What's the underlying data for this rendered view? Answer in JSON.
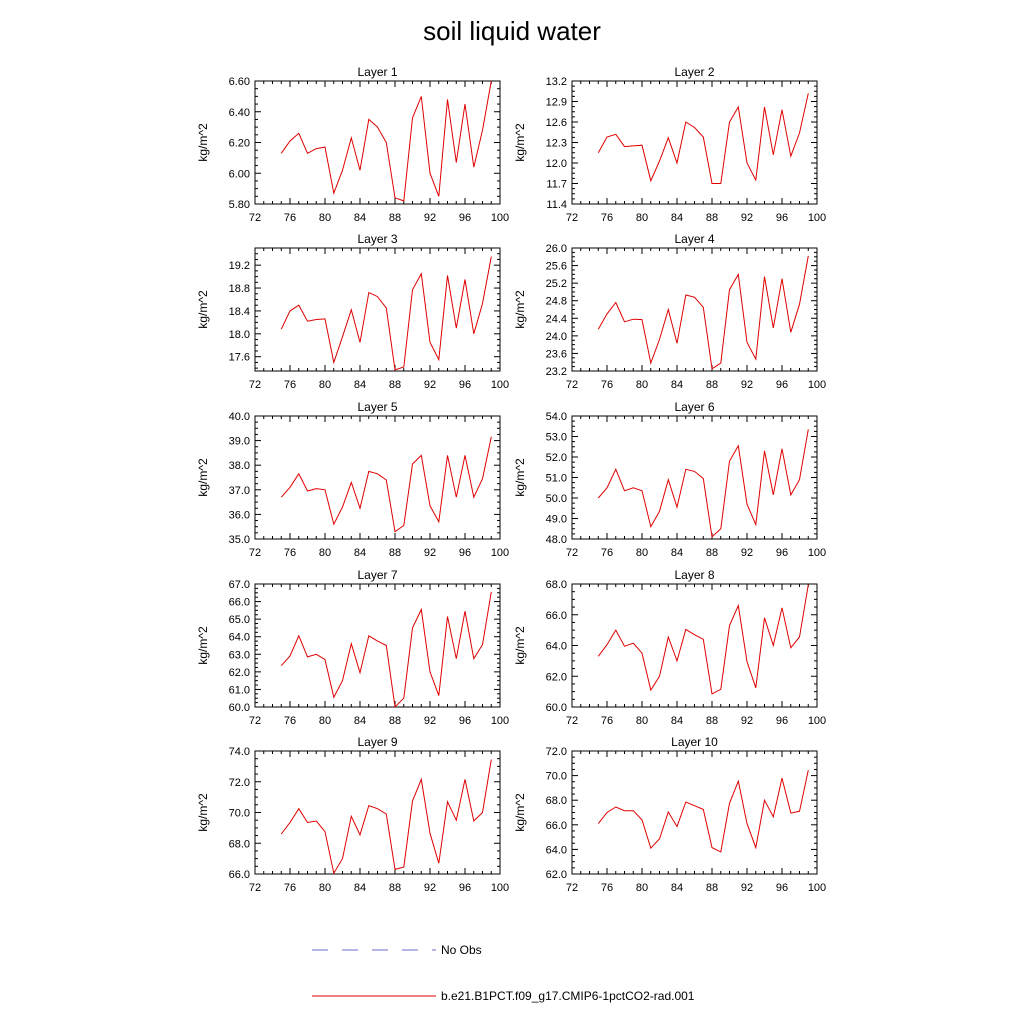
{
  "title": "soil liquid water",
  "legend": {
    "items": [
      {
        "label": "No Obs",
        "color": "#6b6bd6",
        "style": "dashed"
      },
      {
        "label": "b.e21.B1PCT.f09_g17.CMIP6-1pctCO2-rad.001",
        "color": "#e00000",
        "style": "solid"
      }
    ]
  },
  "chart_data": [
    {
      "type": "line",
      "title": "Layer 1",
      "ylabel": "kg/m^2",
      "xlim": [
        72,
        100
      ],
      "ylim": [
        5.8,
        6.6
      ],
      "xticks": [
        "72",
        "76",
        "80",
        "84",
        "88",
        "92",
        "96",
        "100"
      ],
      "yticks": [
        "5.80",
        "6.00",
        "6.20",
        "6.40",
        "6.60"
      ],
      "ytick_values": [
        5.8,
        6.0,
        6.2,
        6.4,
        6.6
      ],
      "series": [
        {
          "color": "#e00000",
          "x": [
            75,
            76,
            77,
            78,
            79,
            80,
            81,
            82,
            83,
            84,
            85,
            86,
            87,
            88,
            89,
            90,
            91,
            92,
            93,
            94,
            95,
            96,
            97,
            98,
            99
          ],
          "y": [
            6.13,
            6.21,
            6.26,
            6.13,
            6.16,
            6.17,
            5.87,
            6.02,
            6.23,
            6.02,
            6.35,
            6.3,
            6.2,
            5.84,
            5.82,
            6.36,
            6.5,
            6.0,
            5.85,
            6.48,
            6.07,
            6.45,
            6.04,
            6.28,
            6.6
          ]
        }
      ]
    },
    {
      "type": "line",
      "title": "Layer 2",
      "ylabel": "kg/m^2",
      "xlim": [
        72,
        100
      ],
      "ylim": [
        11.4,
        13.2
      ],
      "xticks": [
        "72",
        "76",
        "80",
        "84",
        "88",
        "92",
        "96",
        "100"
      ],
      "yticks": [
        "11.4",
        "11.7",
        "12.0",
        "12.3",
        "12.6",
        "12.9",
        "13.2"
      ],
      "ytick_values": [
        11.4,
        11.7,
        12.0,
        12.3,
        12.6,
        12.9,
        13.2
      ],
      "series": [
        {
          "color": "#e00000",
          "x": [
            75,
            76,
            77,
            78,
            79,
            80,
            81,
            82,
            83,
            84,
            85,
            86,
            87,
            88,
            89,
            90,
            91,
            92,
            93,
            94,
            95,
            96,
            97,
            98,
            99
          ],
          "y": [
            12.15,
            12.38,
            12.42,
            12.24,
            12.25,
            12.26,
            11.74,
            12.03,
            12.37,
            12.0,
            12.6,
            12.52,
            12.38,
            11.7,
            11.7,
            12.6,
            12.82,
            12.0,
            11.75,
            12.82,
            12.12,
            12.78,
            12.1,
            12.44,
            13.02
          ]
        }
      ]
    },
    {
      "type": "line",
      "title": "Layer 3",
      "ylabel": "kg/m^2",
      "xlim": [
        72,
        100
      ],
      "ylim": [
        17.35,
        19.5
      ],
      "xticks": [
        "72",
        "76",
        "80",
        "84",
        "88",
        "92",
        "96",
        "100"
      ],
      "yticks": [
        "17.6",
        "18.0",
        "18.4",
        "18.8",
        "19.2"
      ],
      "ytick_values": [
        17.6,
        18.0,
        18.4,
        18.8,
        19.2
      ],
      "series": [
        {
          "color": "#e00000",
          "x": [
            75,
            76,
            77,
            78,
            79,
            80,
            81,
            82,
            83,
            84,
            85,
            86,
            87,
            88,
            89,
            90,
            91,
            92,
            93,
            94,
            95,
            96,
            97,
            98,
            99
          ],
          "y": [
            18.08,
            18.4,
            18.5,
            18.22,
            18.25,
            18.26,
            17.5,
            17.95,
            18.42,
            17.85,
            18.72,
            18.65,
            18.45,
            17.37,
            17.42,
            18.77,
            19.05,
            17.85,
            17.55,
            19.02,
            18.1,
            18.95,
            18.0,
            18.53,
            19.35
          ]
        }
      ]
    },
    {
      "type": "line",
      "title": "Layer 4",
      "ylabel": "kg/m^2",
      "xlim": [
        72,
        100
      ],
      "ylim": [
        23.2,
        26.0
      ],
      "xticks": [
        "72",
        "76",
        "80",
        "84",
        "88",
        "92",
        "96",
        "100"
      ],
      "yticks": [
        "23.2",
        "23.6",
        "24.0",
        "24.4",
        "24.8",
        "25.2",
        "25.6",
        "26.0"
      ],
      "ytick_values": [
        23.2,
        23.6,
        24.0,
        24.4,
        24.8,
        25.2,
        25.6,
        26.0
      ],
      "series": [
        {
          "color": "#e00000",
          "x": [
            75,
            76,
            77,
            78,
            79,
            80,
            81,
            82,
            83,
            84,
            85,
            86,
            87,
            88,
            89,
            90,
            91,
            92,
            93,
            94,
            95,
            96,
            97,
            98,
            99
          ],
          "y": [
            24.15,
            24.5,
            24.76,
            24.32,
            24.38,
            24.37,
            23.38,
            23.92,
            24.6,
            23.83,
            24.93,
            24.88,
            24.65,
            23.25,
            23.38,
            25.05,
            25.4,
            23.85,
            23.47,
            25.35,
            24.18,
            25.3,
            24.08,
            24.72,
            25.82
          ]
        }
      ]
    },
    {
      "type": "line",
      "title": "Layer 5",
      "ylabel": "kg/m^2",
      "xlim": [
        72,
        100
      ],
      "ylim": [
        35.0,
        40.0
      ],
      "xticks": [
        "72",
        "76",
        "80",
        "84",
        "88",
        "92",
        "96",
        "100"
      ],
      "yticks": [
        "35.0",
        "36.0",
        "37.0",
        "38.0",
        "39.0",
        "40.0"
      ],
      "ytick_values": [
        35,
        36,
        37,
        38,
        39,
        40
      ],
      "series": [
        {
          "color": "#e00000",
          "x": [
            75,
            76,
            77,
            78,
            79,
            80,
            81,
            82,
            83,
            84,
            85,
            86,
            87,
            88,
            89,
            90,
            91,
            92,
            93,
            94,
            95,
            96,
            97,
            98,
            99
          ],
          "y": [
            36.7,
            37.1,
            37.65,
            36.95,
            37.05,
            37.0,
            35.6,
            36.3,
            37.3,
            36.25,
            37.75,
            37.65,
            37.4,
            35.3,
            35.55,
            38.05,
            38.4,
            36.35,
            35.7,
            38.4,
            36.7,
            38.4,
            36.7,
            37.45,
            39.15
          ]
        }
      ]
    },
    {
      "type": "line",
      "title": "Layer 6",
      "ylabel": "kg/m^2",
      "xlim": [
        72,
        100
      ],
      "ylim": [
        48.0,
        54.0
      ],
      "xticks": [
        "72",
        "76",
        "80",
        "84",
        "88",
        "92",
        "96",
        "100"
      ],
      "yticks": [
        "48.0",
        "49.0",
        "50.0",
        "51.0",
        "52.0",
        "53.0",
        "54.0"
      ],
      "ytick_values": [
        48,
        49,
        50,
        51,
        52,
        53,
        54
      ],
      "series": [
        {
          "color": "#e00000",
          "x": [
            75,
            76,
            77,
            78,
            79,
            80,
            81,
            82,
            83,
            84,
            85,
            86,
            87,
            88,
            89,
            90,
            91,
            92,
            93,
            94,
            95,
            96,
            97,
            98,
            99
          ],
          "y": [
            50.0,
            50.5,
            51.4,
            50.35,
            50.5,
            50.35,
            48.6,
            49.35,
            50.9,
            49.55,
            51.4,
            51.3,
            50.95,
            48.1,
            48.5,
            51.8,
            52.55,
            49.7,
            48.7,
            52.3,
            50.15,
            52.4,
            50.15,
            50.9,
            53.35
          ]
        }
      ]
    },
    {
      "type": "line",
      "title": "Layer 7",
      "ylabel": "kg/m^2",
      "xlim": [
        72,
        100
      ],
      "ylim": [
        60.0,
        67.0
      ],
      "xticks": [
        "72",
        "76",
        "80",
        "84",
        "88",
        "92",
        "96",
        "100"
      ],
      "yticks": [
        "60.0",
        "61.0",
        "62.0",
        "63.0",
        "64.0",
        "65.0",
        "66.0",
        "67.0"
      ],
      "ytick_values": [
        60,
        61,
        62,
        63,
        64,
        65,
        66,
        67
      ],
      "series": [
        {
          "color": "#e00000",
          "x": [
            75,
            76,
            77,
            78,
            79,
            80,
            81,
            82,
            83,
            84,
            85,
            86,
            87,
            88,
            89,
            90,
            91,
            92,
            93,
            94,
            95,
            96,
            97,
            98,
            99
          ],
          "y": [
            62.35,
            62.9,
            64.05,
            62.85,
            63.0,
            62.7,
            60.55,
            61.5,
            63.6,
            61.95,
            64.05,
            63.75,
            63.5,
            60.0,
            60.5,
            64.5,
            65.55,
            62.0,
            60.65,
            65.15,
            62.75,
            65.45,
            62.75,
            63.55,
            66.55
          ]
        }
      ]
    },
    {
      "type": "line",
      "title": "Layer 8",
      "ylabel": "kg/m^2",
      "xlim": [
        72,
        100
      ],
      "ylim": [
        60.0,
        68.0
      ],
      "xticks": [
        "72",
        "76",
        "80",
        "84",
        "88",
        "92",
        "96",
        "100"
      ],
      "yticks": [
        "60.0",
        "62.0",
        "64.0",
        "66.0",
        "68.0"
      ],
      "ytick_values": [
        60,
        62,
        64,
        66,
        68
      ],
      "series": [
        {
          "color": "#e00000",
          "x": [
            75,
            76,
            77,
            78,
            79,
            80,
            81,
            82,
            83,
            84,
            85,
            86,
            87,
            88,
            89,
            90,
            91,
            92,
            93,
            94,
            95,
            96,
            97,
            98,
            99
          ],
          "y": [
            63.3,
            64.05,
            65.0,
            63.95,
            64.15,
            63.5,
            61.1,
            62.0,
            64.55,
            63.0,
            65.05,
            64.7,
            64.4,
            60.85,
            61.15,
            65.3,
            66.6,
            62.95,
            61.25,
            65.8,
            64.0,
            66.45,
            63.85,
            64.55,
            67.95
          ]
        }
      ]
    },
    {
      "type": "line",
      "title": "Layer 9",
      "ylabel": "kg/m^2",
      "xlim": [
        72,
        100
      ],
      "ylim": [
        66.0,
        74.0
      ],
      "xticks": [
        "72",
        "76",
        "80",
        "84",
        "88",
        "92",
        "96",
        "100"
      ],
      "yticks": [
        "66.0",
        "68.0",
        "70.0",
        "72.0",
        "74.0"
      ],
      "ytick_values": [
        66,
        68,
        70,
        72,
        74
      ],
      "series": [
        {
          "color": "#e00000",
          "x": [
            75,
            76,
            77,
            78,
            79,
            80,
            81,
            82,
            83,
            84,
            85,
            86,
            87,
            88,
            89,
            90,
            91,
            92,
            93,
            94,
            95,
            96,
            97,
            98,
            99
          ],
          "y": [
            68.6,
            69.35,
            70.25,
            69.35,
            69.45,
            68.75,
            66.05,
            67.0,
            69.75,
            68.55,
            70.45,
            70.25,
            69.9,
            66.3,
            66.45,
            70.75,
            72.15,
            68.65,
            66.7,
            70.7,
            69.5,
            72.15,
            69.45,
            70.0,
            73.45
          ]
        }
      ]
    },
    {
      "type": "line",
      "title": "Layer 10",
      "ylabel": "kg/m^2",
      "xlim": [
        72,
        100
      ],
      "ylim": [
        62.0,
        72.0
      ],
      "xticks": [
        "72",
        "76",
        "80",
        "84",
        "88",
        "92",
        "96",
        "100"
      ],
      "yticks": [
        "62.0",
        "64.0",
        "66.0",
        "68.0",
        "70.0",
        "72.0"
      ],
      "ytick_values": [
        62,
        64,
        66,
        68,
        70,
        72
      ],
      "series": [
        {
          "color": "#e00000",
          "x": [
            75,
            76,
            77,
            78,
            79,
            80,
            81,
            82,
            83,
            84,
            85,
            86,
            87,
            88,
            89,
            90,
            91,
            92,
            93,
            94,
            95,
            96,
            97,
            98,
            99
          ],
          "y": [
            66.1,
            67.0,
            67.45,
            67.15,
            67.15,
            66.4,
            64.1,
            64.85,
            67.05,
            65.85,
            67.85,
            67.55,
            67.25,
            64.15,
            63.8,
            67.75,
            69.55,
            66.1,
            64.15,
            68.0,
            66.65,
            69.8,
            66.95,
            67.1,
            70.45
          ]
        }
      ]
    }
  ]
}
